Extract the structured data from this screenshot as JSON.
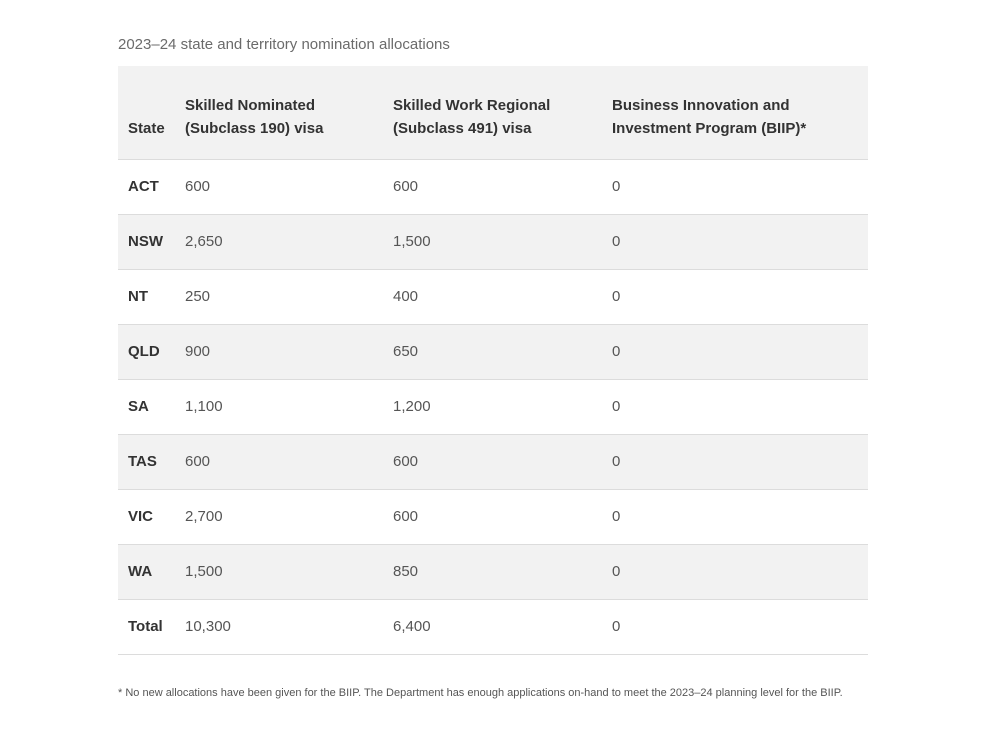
{
  "caption": "2023–24 state and territory nomination allocations",
  "table": {
    "headers": [
      "State",
      "Skilled Nominated (Subclass 190) visa",
      "Skilled Work Regional (Subclass 491) visa",
      "Business Innovation and Investment Program (BIIP)*"
    ],
    "rows": [
      [
        "ACT",
        "600",
        "600",
        "0"
      ],
      [
        "NSW",
        "2,650",
        "1,500",
        "0"
      ],
      [
        "NT",
        "250",
        "400",
        "0"
      ],
      [
        "QLD",
        "900",
        "650",
        "0"
      ],
      [
        "SA",
        "1,100",
        "1,200",
        "0"
      ],
      [
        "TAS",
        "600",
        "600",
        "0"
      ],
      [
        "VIC",
        "2,700",
        "600",
        "0"
      ],
      [
        "WA",
        "1,500",
        "850",
        "0"
      ],
      [
        "Total",
        "10,300",
        "6,400",
        "0"
      ]
    ]
  },
  "footnote": "* No new allocations have been given for the BIIP. The Department has enough applications on-hand to meet the 2023–24 planning level for the BIIP."
}
